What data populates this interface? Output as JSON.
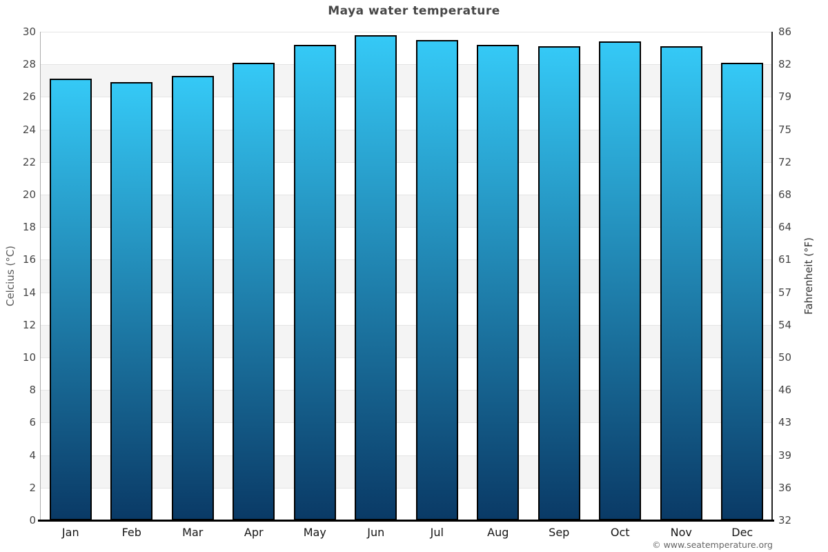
{
  "title": "Maya water temperature",
  "footer": {
    "copyright": "© www.seatemperature.org"
  },
  "chart_data": {
    "type": "bar",
    "title": "Maya water temperature",
    "categories": [
      "Jan",
      "Feb",
      "Mar",
      "Apr",
      "May",
      "Jun",
      "Jul",
      "Aug",
      "Sep",
      "Oct",
      "Nov",
      "Dec"
    ],
    "series": [
      {
        "name": "Water temperature (°C)",
        "values": [
          27.1,
          26.9,
          27.3,
          28.1,
          29.2,
          29.8,
          29.5,
          29.2,
          29.1,
          29.4,
          29.1,
          28.1
        ]
      },
      {
        "name": "Water temperature (°F)",
        "values": [
          80.8,
          80.4,
          81.1,
          82.6,
          84.6,
          85.6,
          85.1,
          84.6,
          84.4,
          84.9,
          84.4,
          82.6
        ]
      }
    ],
    "ylabel_left": "Celcius (°C)",
    "ylabel_right": "Fahrenheit (°F)",
    "yticks_celsius": [
      30,
      28,
      26,
      24,
      22,
      20,
      18,
      16,
      14,
      12,
      10,
      8,
      6,
      4,
      2,
      0
    ],
    "yticks_fahrenheit": [
      86,
      82,
      79,
      75,
      72,
      68,
      64,
      61,
      57,
      54,
      50,
      46,
      43,
      39,
      36,
      32
    ],
    "ylim_celsius": [
      0,
      30
    ],
    "legend": null,
    "grid": "horizontal gridlines every 2°C with alternating white/gray bands",
    "colors": {
      "bar_gradient_top": "#35c9f6",
      "bar_gradient_bottom": "#0a3a66",
      "bar_border": "#000000",
      "band_gray": "#f4f4f4",
      "gridline": "#e4e4e4"
    }
  }
}
